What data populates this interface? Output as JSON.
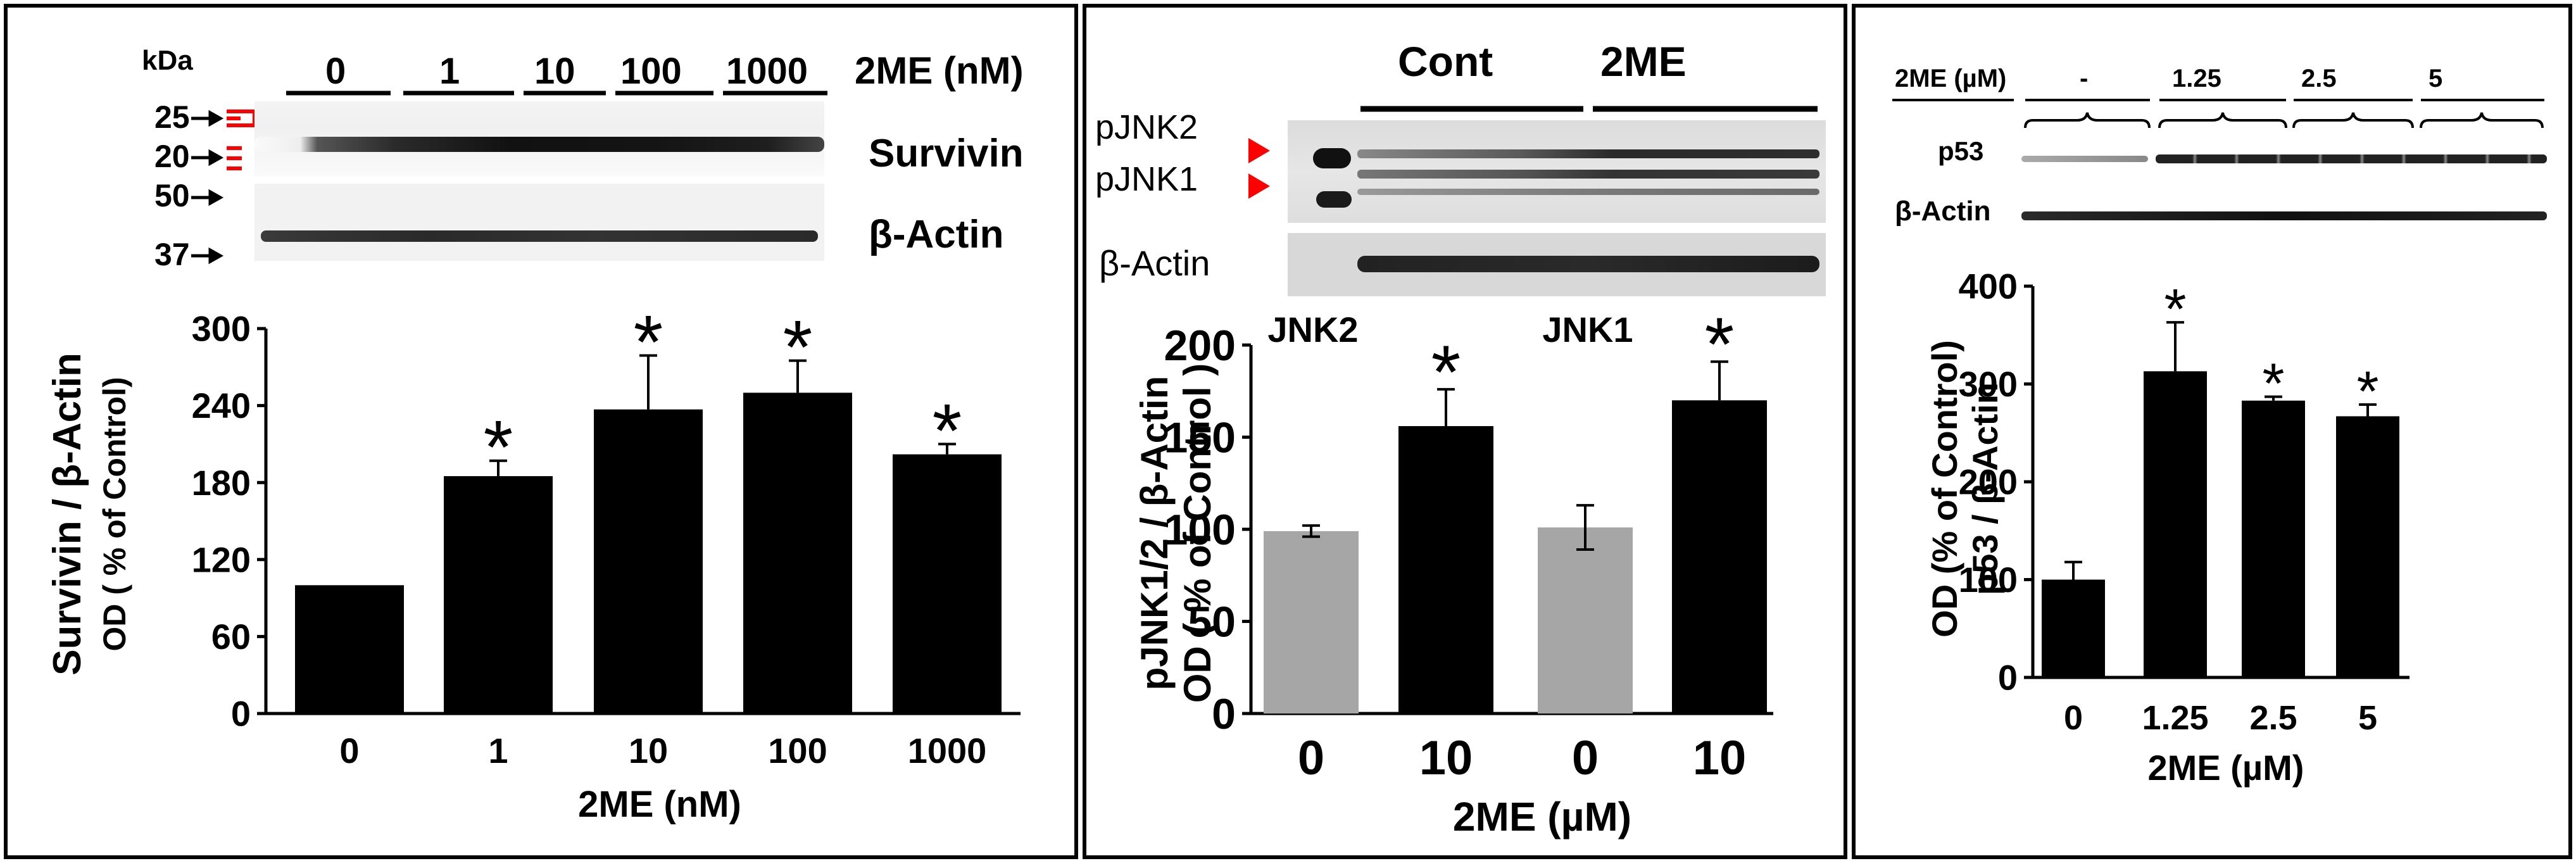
{
  "colors": {
    "black_bar": "#000000",
    "gray_bar": "#a6a6a6",
    "arrow_red": "#ff0000",
    "marker_red": "#ff0000"
  },
  "panelA": {
    "kda_label": "kDa",
    "marker_labels": [
      "25",
      "20",
      "50",
      "37"
    ],
    "dose_labels": [
      "0",
      "1",
      "10",
      "100",
      "1000"
    ],
    "dose_unit": "2ME (nM)",
    "band_labels": [
      "Survivin",
      "β-Actin"
    ]
  },
  "panelB": {
    "header_labels": [
      "Cont",
      "2ME"
    ],
    "band_labels": [
      "pJNK2",
      "pJNK1",
      "β-Actin"
    ],
    "group_labels": [
      "JNK2",
      "JNK1"
    ]
  },
  "panelC": {
    "dose_title": "2ME (µM)",
    "dose_labels": [
      "-",
      "1.25",
      "2.5",
      "5"
    ],
    "band_labels": [
      "p53",
      "β-Actin"
    ]
  },
  "chart_data": [
    {
      "type": "bar",
      "categories": [
        "0",
        "1",
        "10",
        "100",
        "1000"
      ],
      "values": [
        100,
        185,
        237,
        250,
        202
      ],
      "errors": [
        0,
        12,
        42,
        25,
        8
      ],
      "significant": [
        false,
        true,
        true,
        true,
        true
      ],
      "sig_marker": "*",
      "xlabel": "2ME (nM)",
      "ylabel_lines": [
        "Survivin / β-Actin",
        "OD ( % of Control)"
      ],
      "ylim": [
        0,
        300
      ],
      "yticks": [
        "0",
        "60",
        "120",
        "180",
        "240",
        "300"
      ],
      "bar_colors": [
        "#000000",
        "#000000",
        "#000000",
        "#000000",
        "#000000"
      ]
    },
    {
      "type": "bar",
      "categories": [
        "0",
        "10",
        "0",
        "10"
      ],
      "values": [
        99,
        156,
        101,
        170
      ],
      "errors": [
        3,
        20,
        12,
        21
      ],
      "significant": [
        false,
        true,
        false,
        true
      ],
      "sig_marker": "*",
      "xlabel": "2ME (µM)",
      "ylabel_lines": [
        "pJNK1/2 / β-Actin",
        "OD ( % of Control )"
      ],
      "ylim": [
        0,
        200
      ],
      "yticks": [
        "0",
        "50",
        "100",
        "150",
        "200"
      ],
      "bar_colors": [
        "#a6a6a6",
        "#000000",
        "#a6a6a6",
        "#000000"
      ]
    },
    {
      "type": "bar",
      "categories": [
        "0",
        "1.25",
        "2.5",
        "5"
      ],
      "values": [
        100,
        313,
        283,
        267
      ],
      "errors": [
        18,
        50,
        4,
        12
      ],
      "significant": [
        false,
        true,
        true,
        true
      ],
      "sig_marker": "*",
      "xlabel": "2ME (µM)",
      "ylabel_lines": [
        "OD (% of Control)",
        "p53 / β-Actin"
      ],
      "ylim": [
        0,
        400
      ],
      "yticks": [
        "0",
        "100",
        "200",
        "300",
        "400"
      ],
      "bar_colors": [
        "#000000",
        "#000000",
        "#000000",
        "#000000"
      ]
    }
  ]
}
